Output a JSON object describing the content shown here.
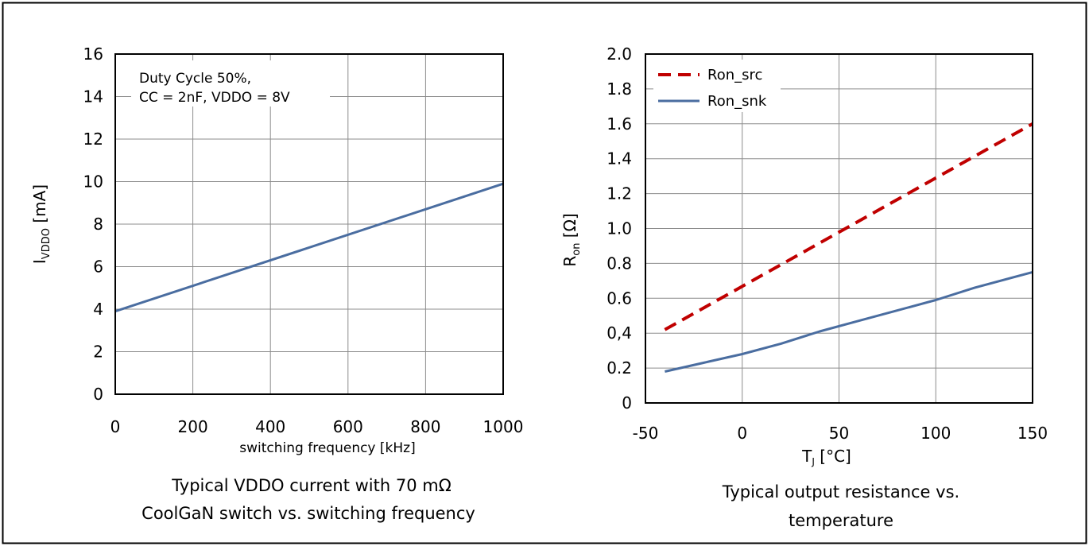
{
  "chart_data": [
    {
      "type": "line",
      "title": "",
      "caption_lines": [
        "Typical VDDO current with 70 mΩ",
        "CoolGaN switch vs. switching frequency"
      ],
      "xlabel": "switching frequency [kHz]",
      "ylabel": {
        "main": "I",
        "sub": "VDDO",
        "unit": " [mA]"
      },
      "xlim": [
        0,
        1000
      ],
      "ylim": [
        0,
        16
      ],
      "xticks": [
        0,
        200,
        400,
        600,
        800,
        1000
      ],
      "xtick_labels": [
        "0",
        "200",
        "400",
        "600",
        "800",
        "1000"
      ],
      "yticks": [
        0,
        2,
        4,
        6,
        8,
        10,
        12,
        14,
        16
      ],
      "ytick_labels": [
        "0",
        "2",
        "4",
        "6",
        "8",
        "10",
        "12",
        "14",
        "16"
      ],
      "grid": true,
      "annotation": [
        "Duty Cycle 50%,",
        "CC = 2nF, VDDO = 8V"
      ],
      "series": [
        {
          "x": [
            0,
            1000
          ],
          "y": [
            3.9,
            9.9
          ],
          "color": "#4a6da0",
          "dash": false
        }
      ]
    },
    {
      "type": "line",
      "title": "",
      "caption_lines": [
        "Typical output resistance vs.",
        "temperature"
      ],
      "xlabel": {
        "main": "T",
        "sub": "J",
        "unit": " [°C]"
      },
      "ylabel": {
        "main": "R",
        "sub": "on",
        "unit": " [Ω]"
      },
      "xlim": [
        -50,
        150
      ],
      "ylim": [
        0,
        2.0
      ],
      "xticks": [
        -50,
        0,
        50,
        100,
        150
      ],
      "xtick_labels": [
        "-50",
        "0",
        "50",
        "100",
        "150"
      ],
      "yticks": [
        0,
        0.2,
        0.4,
        0.6,
        0.8,
        1.0,
        1.2,
        1.4,
        1.6,
        1.8,
        2.0
      ],
      "ytick_labels": [
        "0",
        "0.2",
        "0,4",
        "0.6",
        "0.8",
        "1.0",
        "1.2",
        "1.4",
        "1.6",
        "1.8",
        "2.0"
      ],
      "grid": true,
      "legend_position": "top-left",
      "series": [
        {
          "name": "Ron_src",
          "x": [
            -40,
            150
          ],
          "y": [
            0.42,
            1.6
          ],
          "color": "#c00000",
          "dash": true
        },
        {
          "name": "Ron_snk",
          "x": [
            -40,
            -20,
            0,
            20,
            40,
            60,
            80,
            100,
            120,
            150
          ],
          "y": [
            0.18,
            0.23,
            0.28,
            0.34,
            0.41,
            0.47,
            0.53,
            0.59,
            0.66,
            0.75
          ],
          "color": "#4a6da0",
          "dash": false
        }
      ]
    }
  ]
}
